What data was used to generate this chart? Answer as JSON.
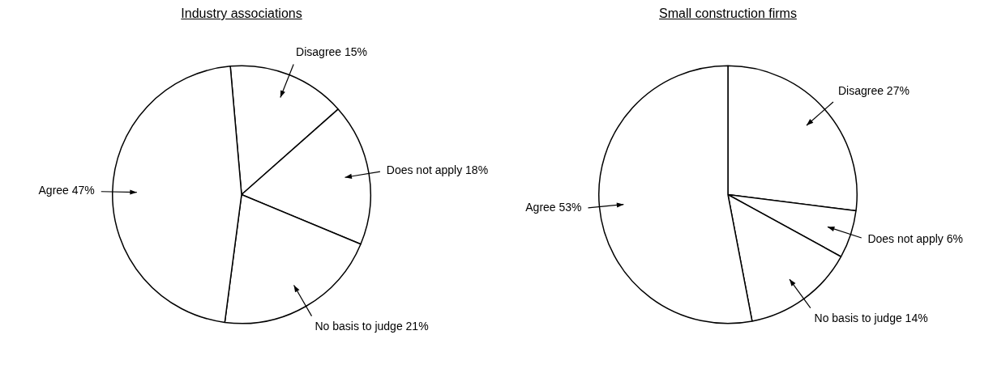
{
  "chart_data": [
    {
      "type": "pie",
      "title": "Industry associations",
      "categories": [
        "Disagree",
        "Does not apply",
        "No basis to judge",
        "Agree"
      ],
      "values": [
        15,
        18,
        21,
        47
      ],
      "value_labels": [
        "15%",
        "18%",
        "21%",
        "47%"
      ],
      "colors": [
        "#ffffff",
        "#ffffff",
        "#ffffff",
        "#ffffff"
      ],
      "legend": false
    },
    {
      "type": "pie",
      "title": "Small construction firms",
      "categories": [
        "Disagree",
        "Does not apply",
        "No basis to judge",
        "Agree"
      ],
      "values": [
        27,
        6,
        14,
        53
      ],
      "value_labels": [
        "27%",
        "6%",
        "14%",
        "53%"
      ],
      "colors": [
        "#ffffff",
        "#ffffff",
        "#ffffff",
        "#ffffff"
      ],
      "legend": false
    }
  ]
}
